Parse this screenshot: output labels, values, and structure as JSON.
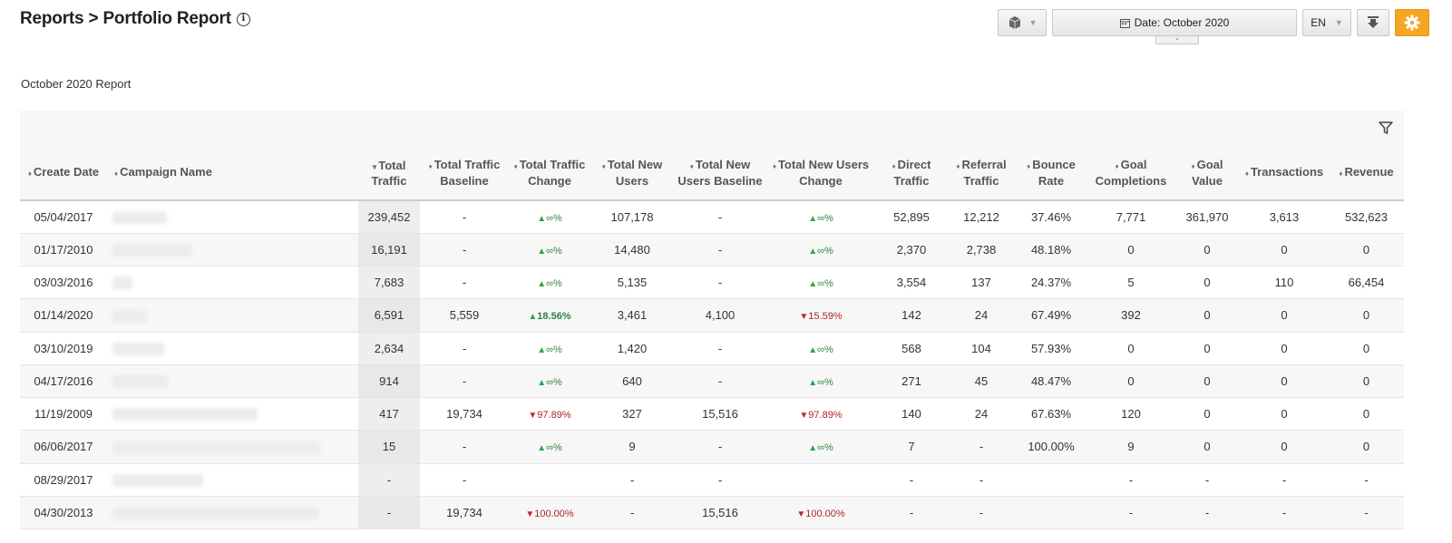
{
  "header": {
    "title": "Reports > Portfolio Report",
    "info_icon": "info-circle-icon"
  },
  "toolbar": {
    "cube_icon": "cube-icon",
    "date_label": "Date: ",
    "date_value": "October 2020",
    "language": "EN",
    "download_icon": "download-icon",
    "settings_icon": "gear-icon",
    "accent_color": "#f5a623"
  },
  "report": {
    "subtitle": "October 2020 Report",
    "filter_icon": "filter-icon"
  },
  "table": {
    "columns": [
      {
        "label": "Create Date",
        "sort": "both"
      },
      {
        "label": "Campaign Name",
        "sort": "both"
      },
      {
        "label": "Total Traffic",
        "sort": "desc"
      },
      {
        "label": "Total Traffic Baseline",
        "sort": "both"
      },
      {
        "label": "Total Traffic Change",
        "sort": "both"
      },
      {
        "label": "Total New Users",
        "sort": "both"
      },
      {
        "label": "Total New Users Baseline",
        "sort": "both"
      },
      {
        "label": "Total New Users Change",
        "sort": "both"
      },
      {
        "label": "Direct Traffic",
        "sort": "both"
      },
      {
        "label": "Referral Traffic",
        "sort": "both"
      },
      {
        "label": "Bounce Rate",
        "sort": "both"
      },
      {
        "label": "Goal Completions",
        "sort": "both"
      },
      {
        "label": "Goal Value",
        "sort": "both"
      },
      {
        "label": "Transactions",
        "sort": "both"
      },
      {
        "label": "Revenue",
        "sort": "both"
      }
    ],
    "rows": [
      {
        "date": "05/04/2017",
        "total_traffic": "239,452",
        "traffic_baseline": "-",
        "traffic_change": {
          "dir": "up",
          "text": "∞%"
        },
        "new_users": "107,178",
        "new_users_baseline": "-",
        "new_users_change": {
          "dir": "up",
          "text": "∞%"
        },
        "direct": "52,895",
        "referral": "12,212",
        "bounce": "37.46%",
        "goal_completions": "7,771",
        "goal_value": "361,970",
        "transactions": "3,613",
        "revenue": "532,623"
      },
      {
        "date": "01/17/2010",
        "total_traffic": "16,191",
        "traffic_baseline": "-",
        "traffic_change": {
          "dir": "up",
          "text": "∞%"
        },
        "new_users": "14,480",
        "new_users_baseline": "-",
        "new_users_change": {
          "dir": "up",
          "text": "∞%"
        },
        "direct": "2,370",
        "referral": "2,738",
        "bounce": "48.18%",
        "goal_completions": "0",
        "goal_value": "0",
        "transactions": "0",
        "revenue": "0"
      },
      {
        "date": "03/03/2016",
        "total_traffic": "7,683",
        "traffic_baseline": "-",
        "traffic_change": {
          "dir": "up",
          "text": "∞%"
        },
        "new_users": "5,135",
        "new_users_baseline": "-",
        "new_users_change": {
          "dir": "up",
          "text": "∞%"
        },
        "direct": "3,554",
        "referral": "137",
        "bounce": "24.37%",
        "goal_completions": "5",
        "goal_value": "0",
        "transactions": "110",
        "revenue": "66,454"
      },
      {
        "date": "01/14/2020",
        "total_traffic": "6,591",
        "traffic_baseline": "5,559",
        "traffic_change": {
          "dir": "up",
          "text": "18.56%"
        },
        "new_users": "3,461",
        "new_users_baseline": "4,100",
        "new_users_change": {
          "dir": "down",
          "text": "15.59%"
        },
        "direct": "142",
        "referral": "24",
        "bounce": "67.49%",
        "goal_completions": "392",
        "goal_value": "0",
        "transactions": "0",
        "revenue": "0"
      },
      {
        "date": "03/10/2019",
        "total_traffic": "2,634",
        "traffic_baseline": "-",
        "traffic_change": {
          "dir": "up",
          "text": "∞%"
        },
        "new_users": "1,420",
        "new_users_baseline": "-",
        "new_users_change": {
          "dir": "up",
          "text": "∞%"
        },
        "direct": "568",
        "referral": "104",
        "bounce": "57.93%",
        "goal_completions": "0",
        "goal_value": "0",
        "transactions": "0",
        "revenue": "0"
      },
      {
        "date": "04/17/2016",
        "total_traffic": "914",
        "traffic_baseline": "-",
        "traffic_change": {
          "dir": "up",
          "text": "∞%"
        },
        "new_users": "640",
        "new_users_baseline": "-",
        "new_users_change": {
          "dir": "up",
          "text": "∞%"
        },
        "direct": "271",
        "referral": "45",
        "bounce": "48.47%",
        "goal_completions": "0",
        "goal_value": "0",
        "transactions": "0",
        "revenue": "0"
      },
      {
        "date": "11/19/2009",
        "total_traffic": "417",
        "traffic_baseline": "19,734",
        "traffic_change": {
          "dir": "down",
          "text": "97.89%"
        },
        "new_users": "327",
        "new_users_baseline": "15,516",
        "new_users_change": {
          "dir": "down",
          "text": "97.89%"
        },
        "direct": "140",
        "referral": "24",
        "bounce": "67.63%",
        "goal_completions": "120",
        "goal_value": "0",
        "transactions": "0",
        "revenue": "0"
      },
      {
        "date": "06/06/2017",
        "total_traffic": "15",
        "traffic_baseline": "-",
        "traffic_change": {
          "dir": "up",
          "text": "∞%"
        },
        "new_users": "9",
        "new_users_baseline": "-",
        "new_users_change": {
          "dir": "up",
          "text": "∞%"
        },
        "direct": "7",
        "referral": "-",
        "bounce": "100.00%",
        "goal_completions": "9",
        "goal_value": "0",
        "transactions": "0",
        "revenue": "0"
      },
      {
        "date": "08/29/2017",
        "total_traffic": "-",
        "traffic_baseline": "-",
        "traffic_change": {
          "dir": "none",
          "text": ""
        },
        "new_users": "-",
        "new_users_baseline": "-",
        "new_users_change": {
          "dir": "none",
          "text": ""
        },
        "direct": "-",
        "referral": "-",
        "bounce": "",
        "goal_completions": "-",
        "goal_value": "-",
        "transactions": "-",
        "revenue": "-"
      },
      {
        "date": "04/30/2013",
        "total_traffic": "-",
        "traffic_baseline": "19,734",
        "traffic_change": {
          "dir": "down",
          "text": "100.00%"
        },
        "new_users": "-",
        "new_users_baseline": "15,516",
        "new_users_change": {
          "dir": "down",
          "text": "100.00%"
        },
        "direct": "-",
        "referral": "-",
        "bounce": "",
        "goal_completions": "-",
        "goal_value": "-",
        "transactions": "-",
        "revenue": "-"
      }
    ]
  }
}
